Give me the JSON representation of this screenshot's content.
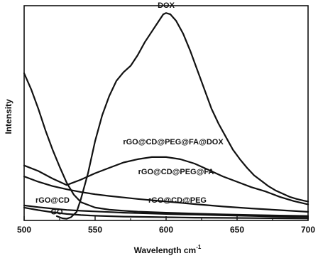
{
  "chart_data": {
    "type": "line",
    "title": "",
    "xlabel": "Wavelength cm",
    "xlabel_superscript": "-1",
    "ylabel": "Intensity",
    "xlim": [
      500,
      700
    ],
    "ylim": [
      0,
      1
    ],
    "x_ticks": [
      500,
      550,
      600,
      650,
      700
    ],
    "y_ticks": [],
    "grid": false,
    "legend": "none (series labeled inline)",
    "series": [
      {
        "name": "DOX",
        "points": [
          [
            523,
            0.02
          ],
          [
            527,
            0.01
          ],
          [
            530,
            0.008
          ],
          [
            533,
            0.015
          ],
          [
            537,
            0.04
          ],
          [
            540,
            0.1
          ],
          [
            545,
            0.22
          ],
          [
            550,
            0.37
          ],
          [
            555,
            0.49
          ],
          [
            560,
            0.58
          ],
          [
            565,
            0.65
          ],
          [
            570,
            0.69
          ],
          [
            575,
            0.72
          ],
          [
            580,
            0.77
          ],
          [
            585,
            0.83
          ],
          [
            590,
            0.88
          ],
          [
            595,
            0.93
          ],
          [
            598,
            0.96
          ],
          [
            600,
            0.966
          ],
          [
            603,
            0.96
          ],
          [
            607,
            0.93
          ],
          [
            612,
            0.87
          ],
          [
            617,
            0.79
          ],
          [
            622,
            0.7
          ],
          [
            627,
            0.61
          ],
          [
            632,
            0.52
          ],
          [
            637,
            0.45
          ],
          [
            642,
            0.39
          ],
          [
            647,
            0.33
          ],
          [
            652,
            0.285
          ],
          [
            657,
            0.245
          ],
          [
            662,
            0.21
          ],
          [
            667,
            0.185
          ],
          [
            672,
            0.16
          ],
          [
            677,
            0.14
          ],
          [
            682,
            0.125
          ],
          [
            687,
            0.11
          ],
          [
            692,
            0.1
          ],
          [
            697,
            0.092
          ],
          [
            700,
            0.088
          ]
        ]
      },
      {
        "name": "rGO@CD@PEG@FA@DOX",
        "points": [
          [
            500,
            0.256
          ],
          [
            510,
            0.23
          ],
          [
            520,
            0.195
          ],
          [
            530,
            0.165
          ],
          [
            540,
            0.19
          ],
          [
            550,
            0.22
          ],
          [
            560,
            0.245
          ],
          [
            570,
            0.27
          ],
          [
            580,
            0.285
          ],
          [
            590,
            0.295
          ],
          [
            600,
            0.295
          ],
          [
            610,
            0.285
          ],
          [
            620,
            0.265
          ],
          [
            630,
            0.235
          ],
          [
            640,
            0.205
          ],
          [
            650,
            0.18
          ],
          [
            660,
            0.155
          ],
          [
            670,
            0.135
          ],
          [
            680,
            0.11
          ],
          [
            690,
            0.09
          ],
          [
            700,
            0.075
          ]
        ]
      },
      {
        "name": "rGO@CD@PEG@FA",
        "points": [
          [
            500,
            0.205
          ],
          [
            510,
            0.18
          ],
          [
            520,
            0.16
          ],
          [
            530,
            0.145
          ],
          [
            540,
            0.132
          ],
          [
            550,
            0.122
          ],
          [
            560,
            0.114
          ],
          [
            570,
            0.107
          ],
          [
            580,
            0.1
          ],
          [
            590,
            0.094
          ],
          [
            600,
            0.088
          ],
          [
            620,
            0.076
          ],
          [
            640,
            0.065
          ],
          [
            660,
            0.056
          ],
          [
            680,
            0.048
          ],
          [
            700,
            0.04
          ]
        ]
      },
      {
        "name": "rGO@CD",
        "points": [
          [
            500,
            0.685
          ],
          [
            505,
            0.61
          ],
          [
            510,
            0.52
          ],
          [
            515,
            0.42
          ],
          [
            520,
            0.33
          ],
          [
            525,
            0.25
          ],
          [
            530,
            0.175
          ],
          [
            535,
            0.12
          ],
          [
            540,
            0.085
          ],
          [
            550,
            0.06
          ],
          [
            560,
            0.05
          ],
          [
            570,
            0.045
          ],
          [
            580,
            0.041
          ],
          [
            600,
            0.036
          ],
          [
            620,
            0.032
          ],
          [
            640,
            0.028
          ],
          [
            660,
            0.025
          ],
          [
            680,
            0.023
          ],
          [
            700,
            0.021
          ]
        ]
      },
      {
        "name": "rGO@CD@PEG",
        "points": [
          [
            500,
            0.07
          ],
          [
            510,
            0.062
          ],
          [
            520,
            0.055
          ],
          [
            530,
            0.049
          ],
          [
            540,
            0.045
          ],
          [
            550,
            0.042
          ],
          [
            560,
            0.039
          ],
          [
            570,
            0.036
          ],
          [
            580,
            0.034
          ],
          [
            600,
            0.03
          ],
          [
            620,
            0.027
          ],
          [
            640,
            0.024
          ],
          [
            660,
            0.021
          ],
          [
            680,
            0.018
          ],
          [
            700,
            0.016
          ]
        ]
      },
      {
        "name": "GO",
        "points": [
          [
            500,
            0.06
          ],
          [
            510,
            0.048
          ],
          [
            520,
            0.038
          ],
          [
            530,
            0.03
          ],
          [
            540,
            0.025
          ],
          [
            550,
            0.022
          ],
          [
            560,
            0.02
          ],
          [
            570,
            0.018
          ],
          [
            580,
            0.017
          ],
          [
            600,
            0.015
          ],
          [
            620,
            0.013
          ],
          [
            640,
            0.012
          ],
          [
            660,
            0.011
          ],
          [
            680,
            0.01
          ],
          [
            700,
            0.009
          ]
        ]
      }
    ]
  }
}
